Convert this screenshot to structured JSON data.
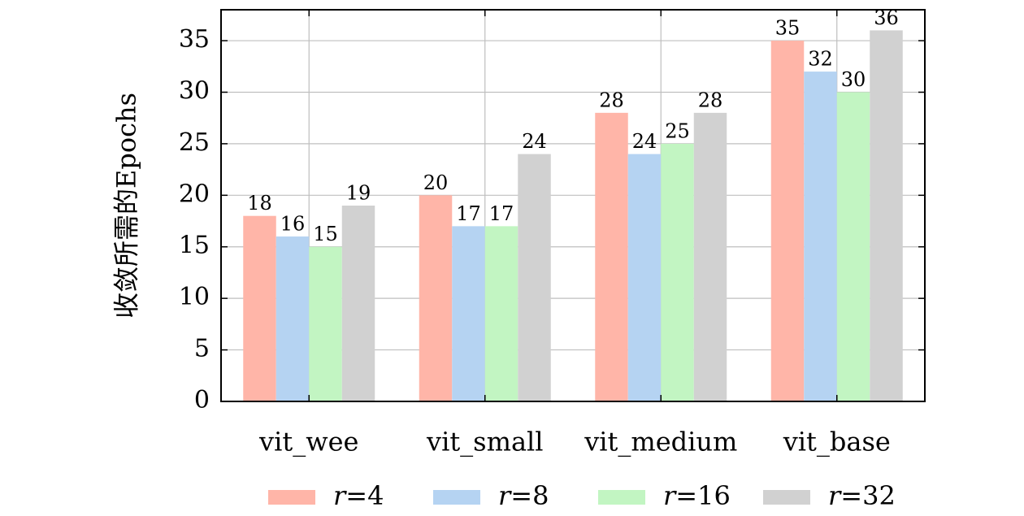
{
  "chart_data": {
    "type": "bar",
    "title": "",
    "xlabel": "",
    "ylabel": "收敛所需的Epochs",
    "categories": [
      "vit_wee",
      "vit_small",
      "vit_medium",
      "vit_base"
    ],
    "series": [
      {
        "name": "r=4",
        "name_var": "r",
        "name_val": "=4",
        "color": "#ffb5a8",
        "values": [
          18,
          20,
          28,
          35
        ]
      },
      {
        "name": "r=8",
        "name_var": "r",
        "name_val": "=8",
        "color": "#b5d3f2",
        "values": [
          16,
          17,
          24,
          32
        ]
      },
      {
        "name": "r=16",
        "name_var": "r",
        "name_val": "=16",
        "color": "#c2f5c2",
        "values": [
          15,
          17,
          25,
          30
        ]
      },
      {
        "name": "r=32",
        "name_var": "r",
        "name_val": "=32",
        "color": "#d1d1d1",
        "values": [
          19,
          24,
          28,
          36
        ]
      }
    ],
    "ylim": [
      0,
      38
    ],
    "yticks": [
      0,
      5,
      10,
      15,
      20,
      25,
      30,
      35
    ],
    "grid": true,
    "legend": "bottom",
    "data_labels": true
  }
}
